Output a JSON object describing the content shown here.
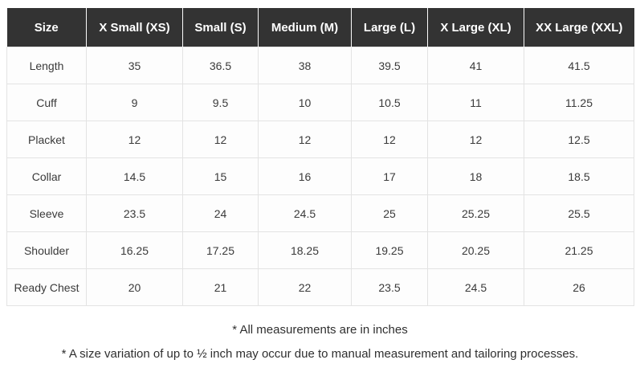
{
  "table": {
    "columns": [
      "Size",
      "X Small (XS)",
      "Small (S)",
      "Medium (M)",
      "Large (L)",
      "X Large (XL)",
      "XX Large (XXL)"
    ],
    "rows": [
      {
        "label": "Length",
        "values": [
          "35",
          "36.5",
          "38",
          "39.5",
          "41",
          "41.5"
        ]
      },
      {
        "label": "Cuff",
        "values": [
          "9",
          "9.5",
          "10",
          "10.5",
          "11",
          "11.25"
        ]
      },
      {
        "label": "Placket",
        "values": [
          "12",
          "12",
          "12",
          "12",
          "12",
          "12.5"
        ]
      },
      {
        "label": "Collar",
        "values": [
          "14.5",
          "15",
          "16",
          "17",
          "18",
          "18.5"
        ]
      },
      {
        "label": "Sleeve",
        "values": [
          "23.5",
          "24",
          "24.5",
          "25",
          "25.25",
          "25.5"
        ]
      },
      {
        "label": "Shoulder",
        "values": [
          "16.25",
          "17.25",
          "18.25",
          "19.25",
          "20.25",
          "21.25"
        ]
      },
      {
        "label": "Ready Chest",
        "values": [
          "20",
          "21",
          "22",
          "23.5",
          "24.5",
          "26"
        ]
      }
    ]
  },
  "notes": [
    "* All measurements are in inches",
    "* A size variation of up to ½ inch may occur due to manual measurement and tailoring processes."
  ],
  "colors": {
    "header_bg": "#333333",
    "header_text": "#ffffff",
    "body_bg": "#fdfdfd",
    "body_text": "#3a3a3a",
    "border": "#e3e3e3"
  }
}
